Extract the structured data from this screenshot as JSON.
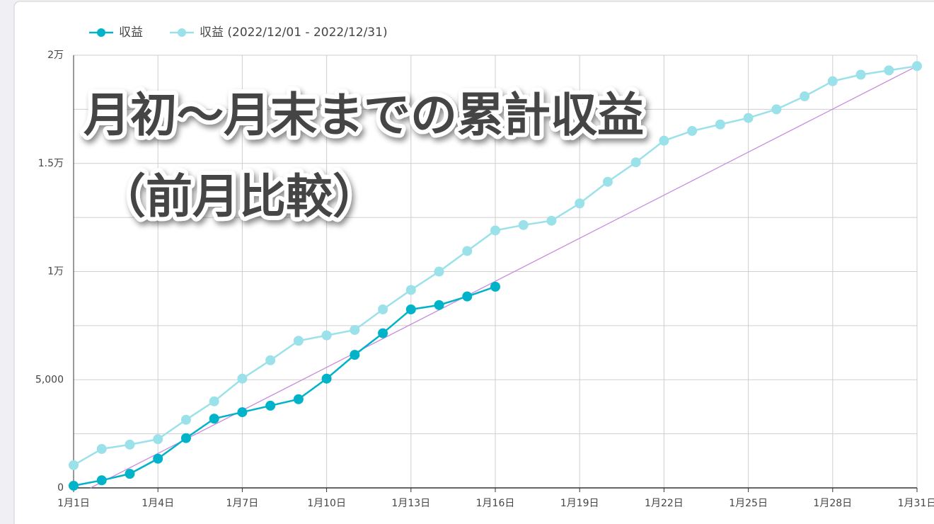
{
  "chart_data": {
    "type": "line",
    "annotation": [
      "月初〜月末までの累計収益",
      "（前月比較）"
    ],
    "annotation_color": "#e8147a",
    "categories": [
      "1月1日",
      null,
      null,
      "1月4日",
      null,
      null,
      "1月7日",
      null,
      null,
      "1月10日",
      null,
      null,
      "1月13日",
      null,
      null,
      "1月16日",
      null,
      null,
      "1月19日",
      null,
      null,
      "1月22日",
      null,
      null,
      "1月25日",
      null,
      null,
      "1月28日",
      null,
      null,
      "1月31日"
    ],
    "series": [
      {
        "name": "収益",
        "color": "#00b3c9",
        "values": [
          100,
          350,
          650,
          1350,
          2300,
          3200,
          3500,
          3800,
          4100,
          5050,
          6150,
          7150,
          8250,
          8450,
          8850,
          9300,
          null,
          null,
          null,
          null,
          null,
          null,
          null,
          null,
          null,
          null,
          null,
          null,
          null,
          null,
          null
        ]
      },
      {
        "name": "収益 (2022/12/01 - 2022/12/31)",
        "color": "#9be1ea",
        "values": [
          1050,
          1800,
          2000,
          2250,
          3150,
          4000,
          5050,
          5900,
          6800,
          7050,
          7300,
          8250,
          9150,
          10000,
          10950,
          11900,
          12150,
          12350,
          13150,
          14150,
          15050,
          16050,
          16500,
          16800,
          17100,
          17500,
          18100,
          18800,
          19100,
          19300,
          19500
        ]
      }
    ],
    "trend_line": {
      "color": "#c98be0",
      "x": [
        1.6,
        31
      ],
      "values": [
        0,
        19500
      ]
    },
    "ylim": [
      0,
      20000
    ],
    "yticks": [
      0,
      {
        "value": 5000,
        "label": "5,000"
      },
      {
        "value": 10000,
        "label": "1万"
      },
      {
        "value": 15000,
        "label": "1.5万"
      },
      {
        "value": 20000,
        "label": "2万"
      }
    ],
    "y_minor_ticks": [
      2500,
      7500,
      12500,
      17500
    ],
    "grid": true,
    "legend": "top-left"
  }
}
